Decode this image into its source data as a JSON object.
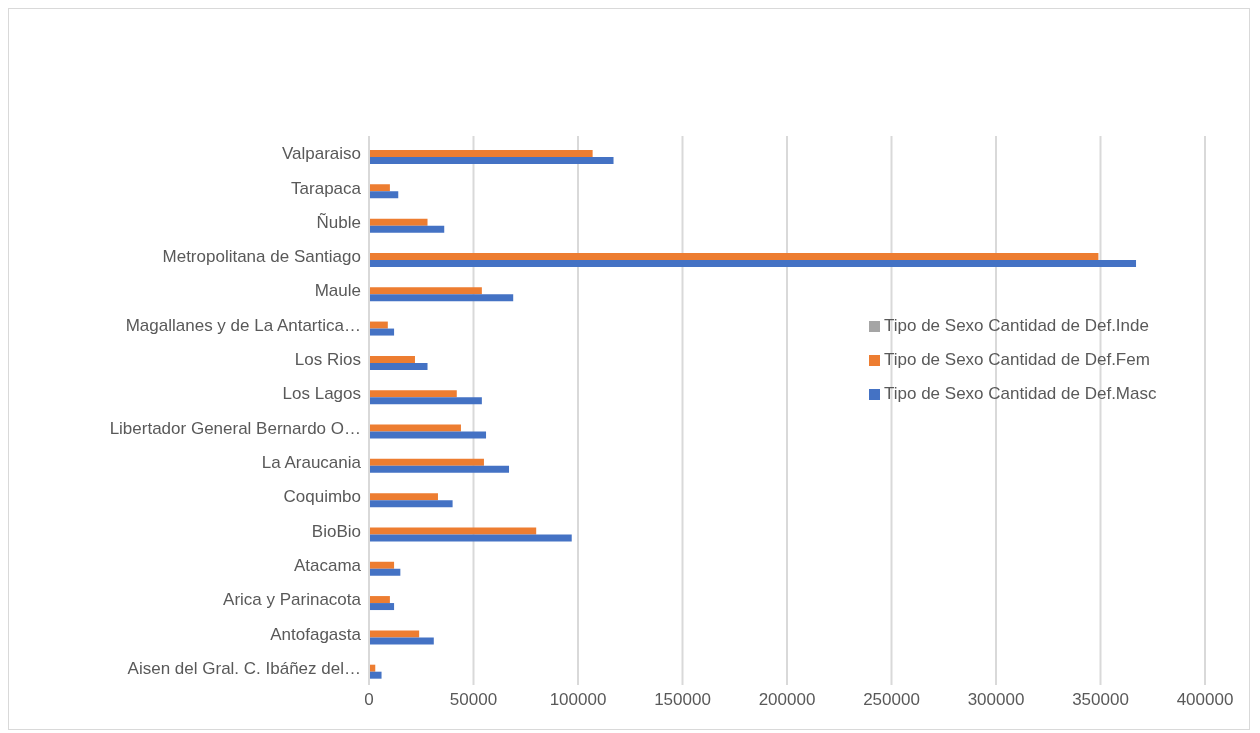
{
  "chart_data": {
    "type": "bar",
    "orientation": "horizontal",
    "categories": [
      "Valparaiso",
      "Tarapaca",
      "Ñuble",
      "Metropolitana de Santiago",
      "Maule",
      "Magallanes y de La Antartica…",
      "Los Rios",
      "Los Lagos",
      "Libertador General Bernardo O…",
      "La Araucania",
      "Coquimbo",
      "BioBio",
      "Atacama",
      "Arica y Parinacota",
      "Antofagasta",
      "Aisen del Gral. C. Ibáñez del…"
    ],
    "series": [
      {
        "name": "Tipo de Sexo Cantidad de Def.Inde",
        "color": "#a5a5a5",
        "values": [
          0,
          0,
          0,
          0,
          0,
          0,
          0,
          0,
          0,
          0,
          0,
          0,
          0,
          0,
          0,
          0
        ]
      },
      {
        "name": "Tipo de Sexo Cantidad de Def.Fem",
        "color": "#ed7d31",
        "values": [
          107000,
          10000,
          28000,
          349000,
          54000,
          9000,
          22000,
          42000,
          44000,
          55000,
          33000,
          80000,
          12000,
          10000,
          24000,
          3000
        ]
      },
      {
        "name": "Tipo de Sexo Cantidad de Def.Masc",
        "color": "#4472c4",
        "values": [
          117000,
          14000,
          36000,
          367000,
          69000,
          12000,
          28000,
          54000,
          56000,
          67000,
          40000,
          97000,
          15000,
          12000,
          31000,
          6000
        ]
      }
    ],
    "xlim": [
      0,
      400000
    ],
    "xticks": [
      0,
      50000,
      100000,
      150000,
      200000,
      250000,
      300000,
      350000,
      400000
    ],
    "grid": "x",
    "legend": "right"
  }
}
